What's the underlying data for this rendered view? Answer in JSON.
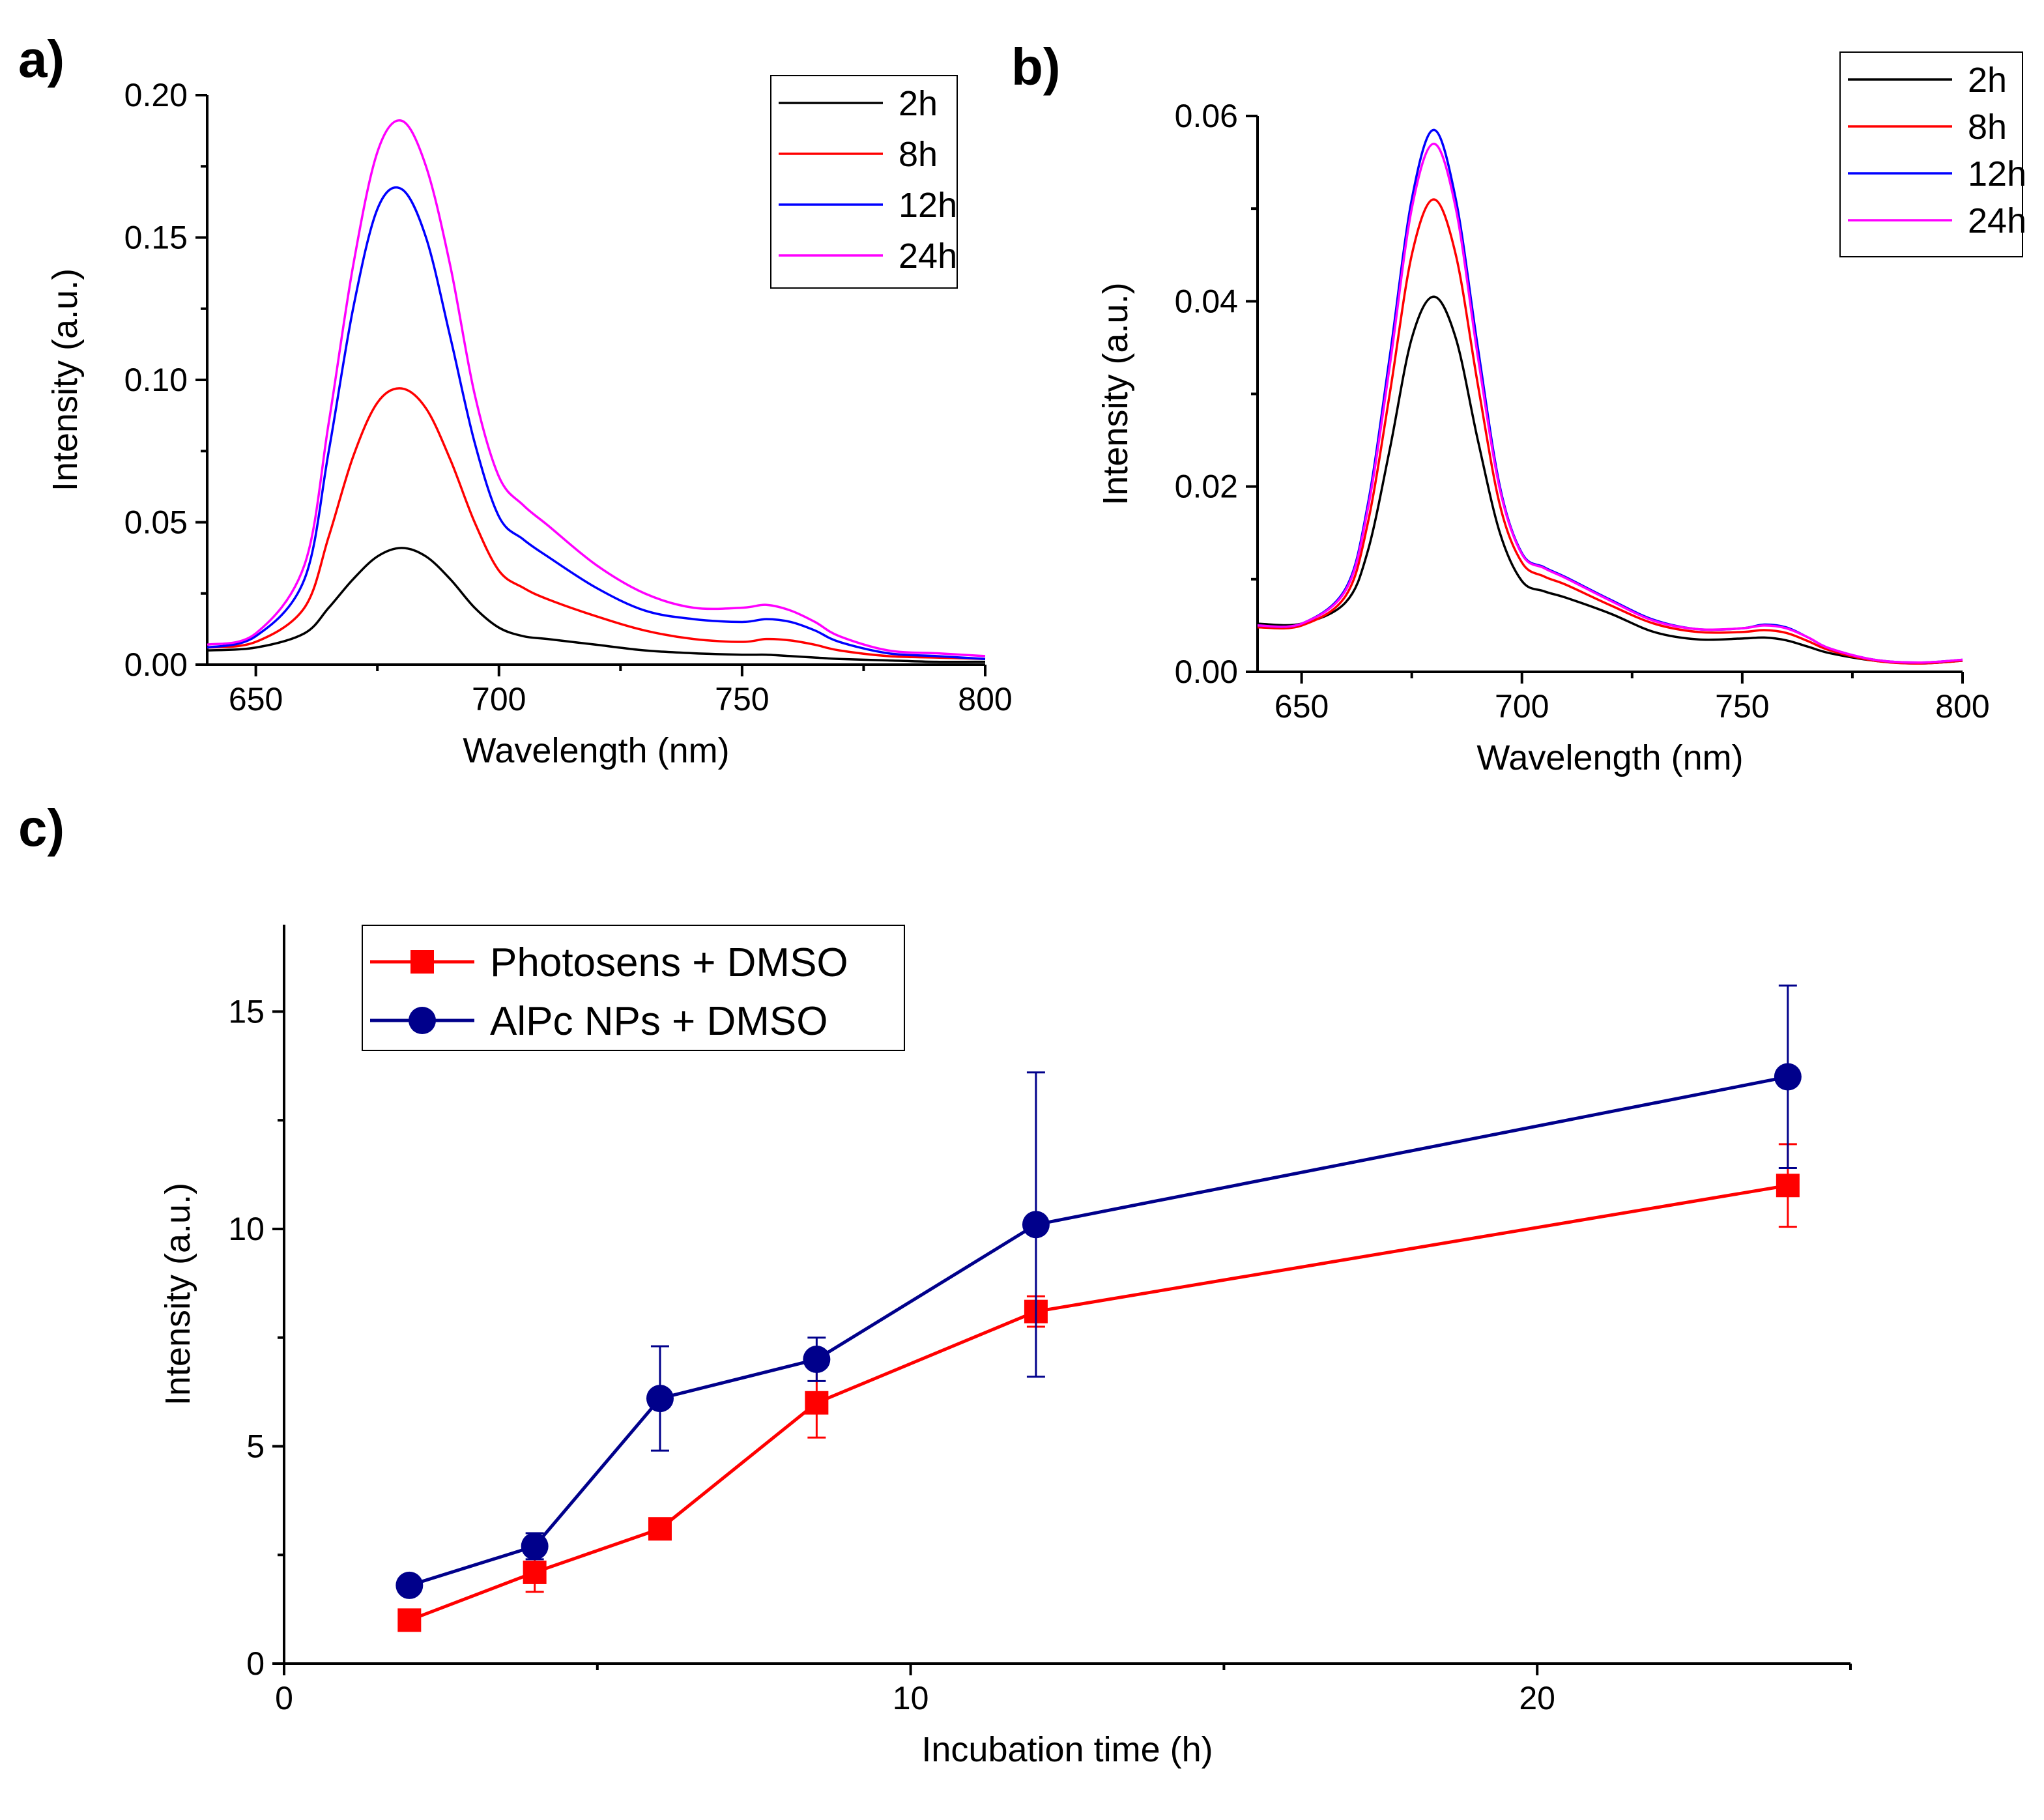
{
  "chart_data": [
    {
      "id": "a",
      "panel_label": "a)",
      "type": "line",
      "xlabel": "Wavelength (nm)",
      "ylabel": "Intensity (a.u.)",
      "xlim": [
        640,
        800
      ],
      "ylim": [
        0,
        0.2
      ],
      "xticks": [
        650,
        700,
        750,
        800
      ],
      "xtick_labels": [
        "650",
        "700",
        "750",
        "800"
      ],
      "yticks": [
        0,
        0.05,
        0.1,
        0.15,
        0.2
      ],
      "ytick_labels": [
        "0.00",
        "0.05",
        "0.10",
        "0.15",
        "0.20"
      ],
      "legend_position": "top-right",
      "x": [
        640,
        650,
        660,
        665,
        670,
        675,
        680,
        685,
        690,
        695,
        700,
        705,
        710,
        720,
        730,
        740,
        750,
        755,
        760,
        765,
        770,
        780,
        790,
        800
      ],
      "series": [
        {
          "name": "2h",
          "color": "#000000",
          "values": [
            0.005,
            0.006,
            0.011,
            0.02,
            0.03,
            0.038,
            0.041,
            0.038,
            0.03,
            0.02,
            0.013,
            0.01,
            0.009,
            0.007,
            0.005,
            0.004,
            0.0035,
            0.0035,
            0.003,
            0.0025,
            0.002,
            0.0015,
            0.001,
            0.001
          ]
        },
        {
          "name": "8h",
          "color": "#ff0000",
          "values": [
            0.006,
            0.008,
            0.02,
            0.045,
            0.073,
            0.092,
            0.097,
            0.09,
            0.072,
            0.05,
            0.033,
            0.027,
            0.023,
            0.017,
            0.012,
            0.009,
            0.008,
            0.009,
            0.0085,
            0.007,
            0.005,
            0.003,
            0.0025,
            0.002
          ]
        },
        {
          "name": "12h",
          "color": "#0000ff",
          "values": [
            0.006,
            0.01,
            0.03,
            0.075,
            0.125,
            0.16,
            0.167,
            0.15,
            0.115,
            0.078,
            0.052,
            0.044,
            0.038,
            0.027,
            0.019,
            0.016,
            0.015,
            0.016,
            0.015,
            0.012,
            0.008,
            0.004,
            0.003,
            0.002
          ]
        },
        {
          "name": "24h",
          "color": "#ff00ff",
          "values": [
            0.007,
            0.011,
            0.035,
            0.085,
            0.14,
            0.18,
            0.191,
            0.175,
            0.14,
            0.095,
            0.066,
            0.056,
            0.049,
            0.035,
            0.025,
            0.02,
            0.02,
            0.021,
            0.019,
            0.015,
            0.01,
            0.005,
            0.004,
            0.003
          ]
        }
      ]
    },
    {
      "id": "b",
      "panel_label": "b)",
      "type": "line",
      "xlabel": "Wavelength (nm)",
      "ylabel": "Intensity (a.u.)",
      "xlim": [
        640,
        800
      ],
      "ylim": [
        0,
        0.06
      ],
      "xticks": [
        650,
        700,
        750,
        800
      ],
      "xtick_labels": [
        "650",
        "700",
        "750",
        "800"
      ],
      "yticks": [
        0,
        0.02,
        0.04,
        0.06
      ],
      "ytick_labels": [
        "0.00",
        "0.02",
        "0.04",
        "0.06"
      ],
      "legend_position": "top-right",
      "x": [
        640,
        650,
        660,
        665,
        670,
        675,
        680,
        685,
        690,
        695,
        700,
        705,
        710,
        720,
        730,
        740,
        750,
        755,
        760,
        765,
        770,
        780,
        790,
        800
      ],
      "series": [
        {
          "name": "2h",
          "color": "#000000",
          "values": [
            0.0052,
            0.0052,
            0.0075,
            0.013,
            0.024,
            0.036,
            0.0405,
            0.036,
            0.025,
            0.015,
            0.0098,
            0.0087,
            0.008,
            0.0063,
            0.0043,
            0.0035,
            0.0036,
            0.0037,
            0.0034,
            0.0027,
            0.002,
            0.0012,
            0.0009,
            0.0012
          ]
        },
        {
          "name": "8h",
          "color": "#ff0000",
          "values": [
            0.0048,
            0.005,
            0.0082,
            0.016,
            0.03,
            0.045,
            0.051,
            0.045,
            0.031,
            0.018,
            0.0118,
            0.0103,
            0.0094,
            0.0072,
            0.0052,
            0.0043,
            0.0043,
            0.0045,
            0.0042,
            0.0033,
            0.0023,
            0.0012,
            0.0009,
            0.0012
          ]
        },
        {
          "name": "12h",
          "color": "#0000ff",
          "values": [
            0.005,
            0.0052,
            0.009,
            0.018,
            0.034,
            0.051,
            0.0585,
            0.051,
            0.035,
            0.02,
            0.0128,
            0.0113,
            0.0102,
            0.0078,
            0.0056,
            0.0046,
            0.0047,
            0.0051,
            0.0048,
            0.0037,
            0.0025,
            0.0013,
            0.001,
            0.0013
          ]
        },
        {
          "name": "24h",
          "color": "#ff00ff",
          "values": [
            0.005,
            0.0052,
            0.0088,
            0.0175,
            0.033,
            0.05,
            0.057,
            0.05,
            0.034,
            0.0197,
            0.0127,
            0.0112,
            0.0101,
            0.0077,
            0.0055,
            0.0046,
            0.0047,
            0.005,
            0.0047,
            0.0037,
            0.0025,
            0.0013,
            0.001,
            0.0013
          ]
        }
      ]
    },
    {
      "id": "c",
      "panel_label": "c)",
      "type": "line",
      "xlabel": "Incubation time (h)",
      "ylabel": "Intensity (a.u.)",
      "xlim": [
        0,
        25
      ],
      "ylim": [
        0,
        17
      ],
      "xticks": [
        0,
        10,
        20
      ],
      "xtick_labels": [
        "0",
        "10",
        "20"
      ],
      "yticks": [
        0,
        5,
        10,
        15
      ],
      "ytick_labels": [
        "0",
        "5",
        "10",
        "15"
      ],
      "legend_position": "top-left",
      "x": [
        2,
        4,
        6,
        8.5,
        12,
        24
      ],
      "series": [
        {
          "name": "Photosens + DMSO",
          "color": "#ff0000",
          "marker": "square",
          "values": [
            1.0,
            2.1,
            3.1,
            6.0,
            8.1,
            11.0
          ],
          "error": [
            0.0,
            0.45,
            0.0,
            0.8,
            0.35,
            0.95
          ]
        },
        {
          "name": "AlPc NPs + DMSO",
          "color": "#00008b",
          "marker": "circle",
          "values": [
            1.8,
            2.7,
            6.1,
            7.0,
            10.1,
            13.5
          ],
          "error": [
            0.0,
            0.3,
            1.2,
            0.5,
            3.5,
            2.1
          ]
        }
      ]
    }
  ]
}
